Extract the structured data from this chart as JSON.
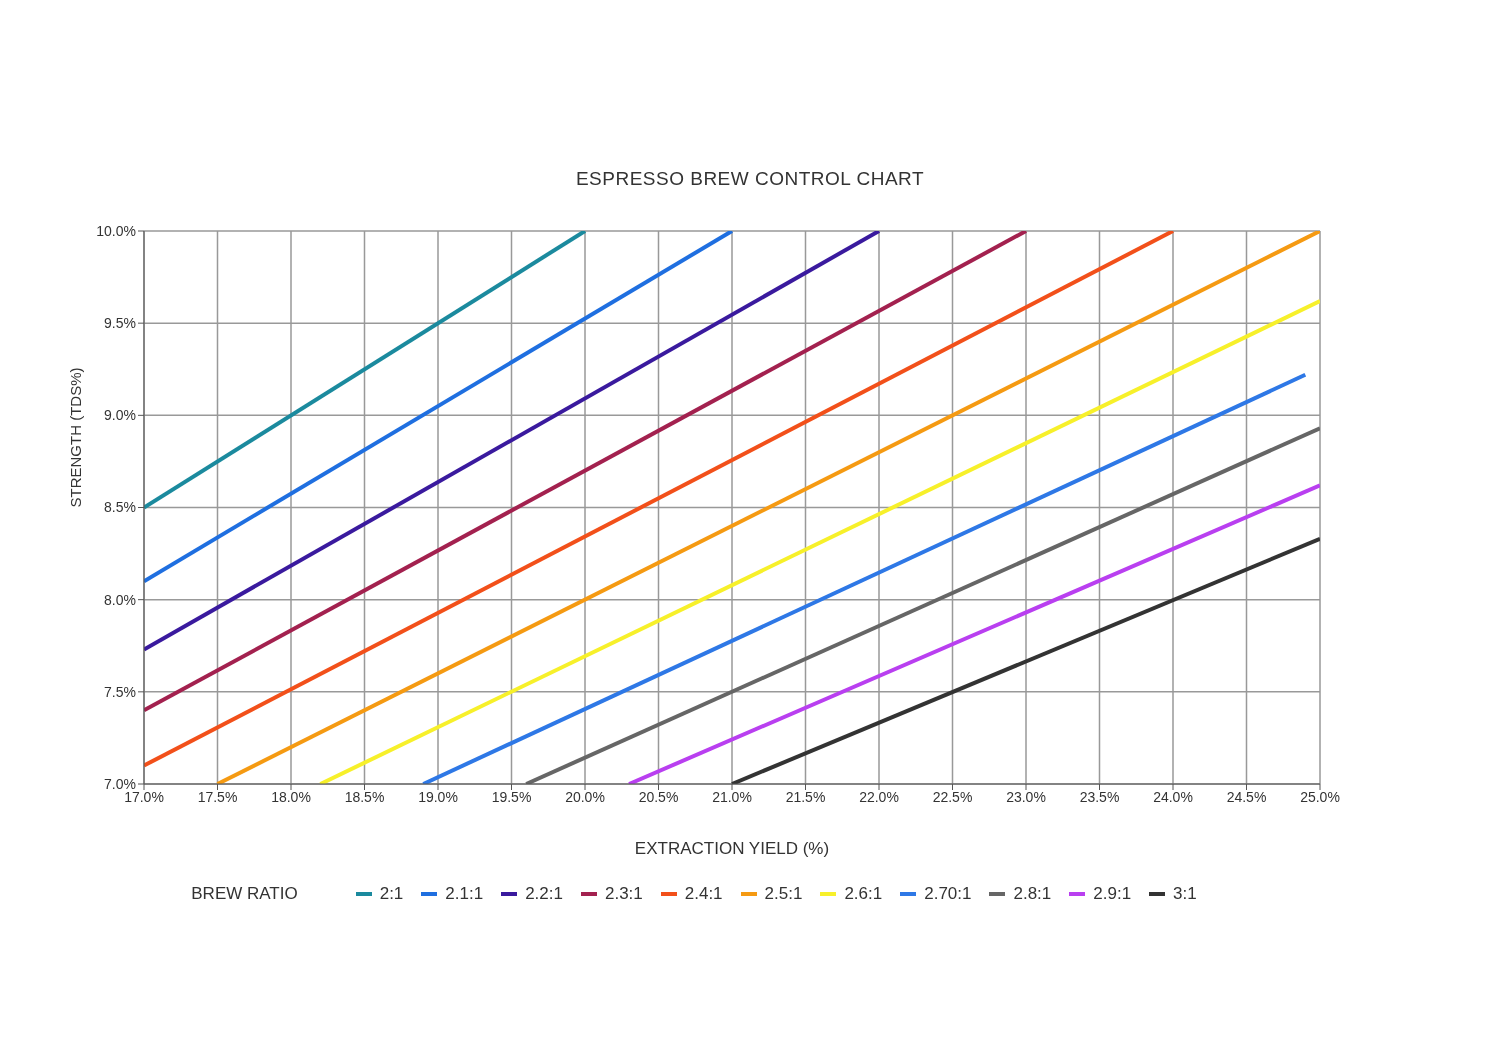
{
  "chart_data": {
    "type": "line",
    "title": "ESPRESSO BREW CONTROL CHART",
    "xlabel": "EXTRACTION YIELD (%)",
    "ylabel": "STRENGTH (TDS%)",
    "legend_title": "BREW RATIO",
    "legend": "bottom",
    "grid": true,
    "marker": "none",
    "line_style": "solid",
    "xlim": [
      17,
      25
    ],
    "ylim": [
      7,
      10
    ],
    "xticks": [
      {
        "value": 17,
        "label": "17.0%"
      },
      {
        "value": 17.5,
        "label": "17.5%"
      },
      {
        "value": 18,
        "label": "18.0%"
      },
      {
        "value": 18.5,
        "label": "18.5%"
      },
      {
        "value": 19,
        "label": "19.0%"
      },
      {
        "value": 19.5,
        "label": "19.5%"
      },
      {
        "value": 20,
        "label": "20.0%"
      },
      {
        "value": 20.5,
        "label": "20.5%"
      },
      {
        "value": 21,
        "label": "21.0%"
      },
      {
        "value": 21.5,
        "label": "21.5%"
      },
      {
        "value": 22,
        "label": "22.0%"
      },
      {
        "value": 22.5,
        "label": "22.5%"
      },
      {
        "value": 23,
        "label": "23.0%"
      },
      {
        "value": 23.5,
        "label": "23.5%"
      },
      {
        "value": 24,
        "label": "24.0%"
      },
      {
        "value": 24.5,
        "label": "24.5%"
      },
      {
        "value": 25,
        "label": "25.0%"
      }
    ],
    "yticks": [
      {
        "value": 7,
        "label": "7.0%"
      },
      {
        "value": 7.5,
        "label": "7.5%"
      },
      {
        "value": 8,
        "label": "8.0%"
      },
      {
        "value": 8.5,
        "label": "8.5%"
      },
      {
        "value": 9,
        "label": "9.0%"
      },
      {
        "value": 9.5,
        "label": "9.5%"
      },
      {
        "value": 10,
        "label": "10.0%"
      }
    ],
    "series": [
      {
        "name": "2:1",
        "color": "#1b8a9e",
        "x": [
          17,
          20
        ],
        "values": [
          8.5,
          10
        ]
      },
      {
        "name": "2.1:1",
        "color": "#1f6fe0",
        "x": [
          17,
          21
        ],
        "values": [
          8.1,
          10
        ]
      },
      {
        "name": "2.2:1",
        "color": "#3a1a9e",
        "x": [
          17,
          22
        ],
        "values": [
          7.73,
          10
        ]
      },
      {
        "name": "2.3:1",
        "color": "#a3214f",
        "x": [
          17,
          23
        ],
        "values": [
          7.4,
          10
        ]
      },
      {
        "name": "2.4:1",
        "color": "#f2501a",
        "x": [
          17,
          24
        ],
        "values": [
          7.1,
          10
        ]
      },
      {
        "name": "2.5:1",
        "color": "#f59a12",
        "x": [
          17.5,
          25
        ],
        "values": [
          7,
          10
        ]
      },
      {
        "name": "2.6:1",
        "color": "#f7f02a",
        "x": [
          18.2,
          25
        ],
        "values": [
          7,
          9.62
        ]
      },
      {
        "name": "2.70:1",
        "color": "#2e78e6",
        "x": [
          18.9,
          24.9
        ],
        "values": [
          7,
          9.22
        ]
      },
      {
        "name": "2.8:1",
        "color": "#666666",
        "x": [
          19.6,
          25
        ],
        "values": [
          7,
          8.93
        ]
      },
      {
        "name": "2.9:1",
        "color": "#b93ff0",
        "x": [
          20.3,
          25
        ],
        "values": [
          7,
          8.62
        ]
      },
      {
        "name": "3:1",
        "color": "#333333",
        "x": [
          21,
          25
        ],
        "values": [
          7,
          8.33
        ]
      }
    ]
  }
}
